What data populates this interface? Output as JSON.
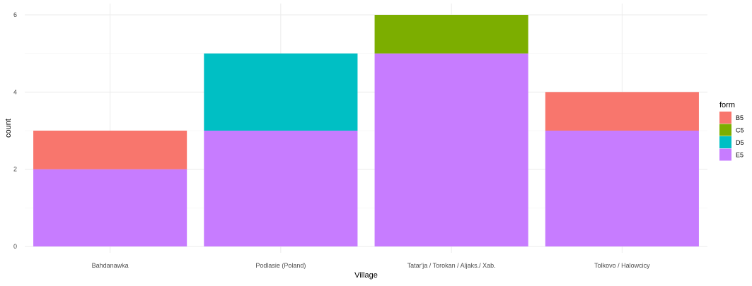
{
  "chart_data": {
    "type": "bar",
    "stacked": true,
    "title": "",
    "xlabel": "Village",
    "ylabel": "count",
    "categories": [
      "Bahdanawka",
      "Podlasie (Poland)",
      "Tatar'ja / Torokan / Aljaks./ Xab.",
      "Tolkovo / Halowcicy"
    ],
    "series": [
      {
        "name": "E5",
        "color": "#C77CFF",
        "values": [
          2,
          3,
          5,
          3
        ]
      },
      {
        "name": "D5",
        "color": "#00BFC4",
        "values": [
          0,
          2,
          0,
          0
        ]
      },
      {
        "name": "C5",
        "color": "#7CAE00",
        "values": [
          0,
          0,
          1,
          0
        ]
      },
      {
        "name": "B5",
        "color": "#F8766D",
        "values": [
          1,
          0,
          0,
          1
        ]
      }
    ],
    "ylim": [
      0,
      6
    ],
    "yticks": [
      0,
      2,
      4,
      6
    ],
    "grid": true,
    "legend": {
      "title": "form",
      "position": "right",
      "entries": [
        {
          "name": "B5",
          "color": "#F8766D"
        },
        {
          "name": "C5",
          "color": "#7CAE00"
        },
        {
          "name": "D5",
          "color": "#00BFC4"
        },
        {
          "name": "E5",
          "color": "#C77CFF"
        }
      ]
    }
  }
}
